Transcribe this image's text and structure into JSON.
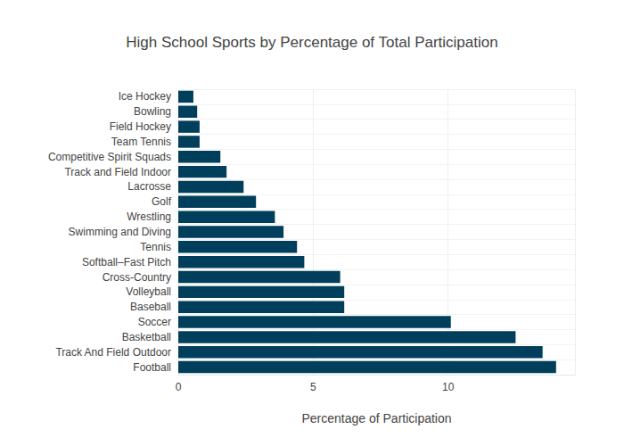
{
  "chart_data": {
    "type": "bar",
    "orientation": "horizontal",
    "title": "High School Sports by Percentage of Total Participation",
    "x_label": "Percentage of Participation",
    "categories": [
      "Football",
      "Track And Field Outdoor",
      "Basketball",
      "Soccer",
      "Baseball",
      "Volleyball",
      "Cross-Country",
      "Softball–Fast Pitch",
      "Tennis",
      "Swimming and Diving",
      "Wrestling",
      "Golf",
      "Lacrosse",
      "Track and Field Indoor",
      "Competitive Spirit Squads",
      "Team Tennis",
      "Field Hockey",
      "Bowling",
      "Ice Hockey"
    ],
    "values": [
      14.0,
      13.5,
      12.5,
      10.1,
      6.15,
      6.15,
      6.0,
      4.67,
      4.4,
      3.9,
      3.58,
      2.88,
      2.42,
      1.79,
      1.56,
      0.79,
      0.79,
      0.7,
      0.56
    ],
    "color": "#003f5c",
    "xlim": [
      0,
      14.7
    ],
    "xticks": [
      0,
      5,
      10
    ],
    "grid": true
  }
}
